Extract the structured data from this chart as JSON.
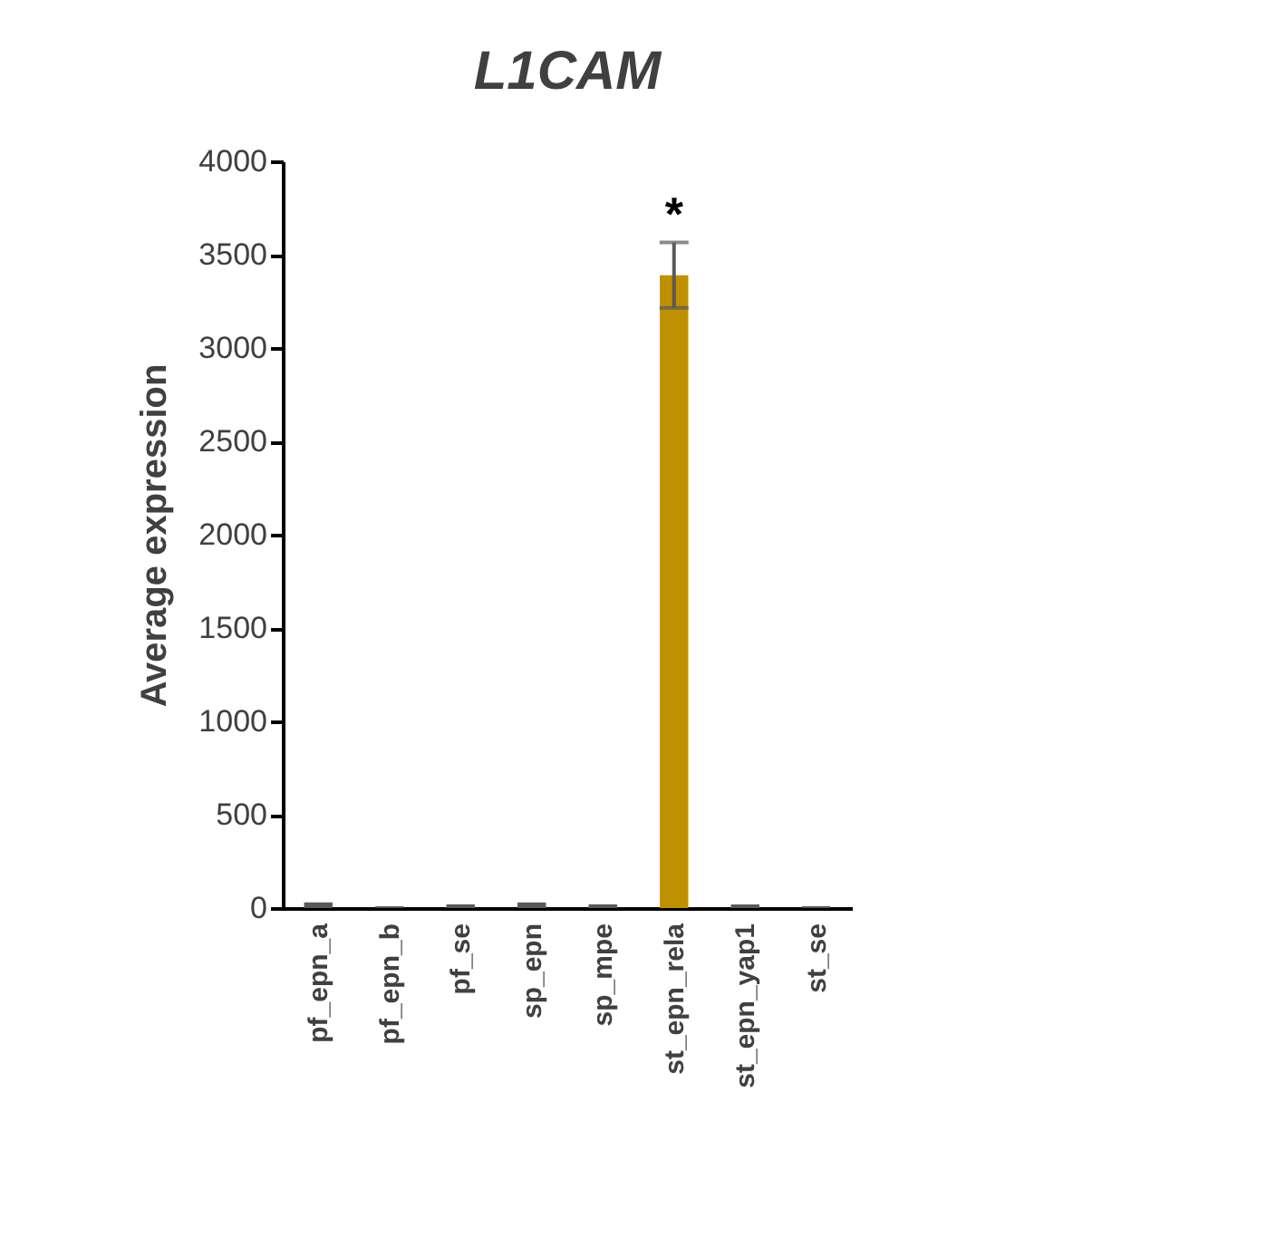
{
  "chart_data": {
    "type": "bar",
    "title": "L1CAM",
    "ylabel": "Average expression",
    "categories": [
      "pf_epn_a",
      "pf_epn_b",
      "pf_se",
      "sp_epn",
      "sp_mpe",
      "st_epn_rela",
      "st_epn_yap1",
      "st_se"
    ],
    "values": [
      30,
      10,
      20,
      30,
      20,
      3390,
      20,
      10
    ],
    "colors": [
      "#595959",
      "#595959",
      "#595959",
      "#595959",
      "#595959",
      "#bf9000",
      "#595959",
      "#595959"
    ],
    "errors": [
      null,
      null,
      null,
      null,
      null,
      175,
      null,
      null
    ],
    "annotations": [
      "*"
    ],
    "ylim": [
      0,
      4000
    ],
    "yticks": [
      0,
      500,
      1000,
      1500,
      2000,
      2500,
      3000,
      3500,
      4000
    ],
    "grid": false
  }
}
